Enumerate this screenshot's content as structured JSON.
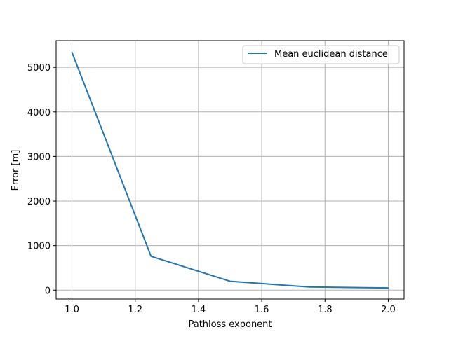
{
  "chart_data": {
    "type": "line",
    "xlabel": "Pathloss exponent",
    "ylabel": "Error [m]",
    "xlim": [
      0.95,
      2.05
    ],
    "ylim": [
      -200,
      5600
    ],
    "xticks": [
      1.0,
      1.2,
      1.4,
      1.6,
      1.8,
      2.0
    ],
    "xtick_labels": [
      "1.0",
      "1.2",
      "1.4",
      "1.6",
      "1.8",
      "2.0"
    ],
    "yticks": [
      0,
      1000,
      2000,
      3000,
      4000,
      5000
    ],
    "ytick_labels": [
      "0",
      "1000",
      "2000",
      "3000",
      "4000",
      "5000"
    ],
    "grid": true,
    "legend_position": "top-right",
    "series": [
      {
        "name": "Mean euclidean distance",
        "color": "#1f77b4",
        "x": [
          1.0,
          1.25,
          1.5,
          1.75,
          2.0
        ],
        "y": [
          5340,
          760,
          200,
          70,
          50
        ]
      }
    ]
  }
}
